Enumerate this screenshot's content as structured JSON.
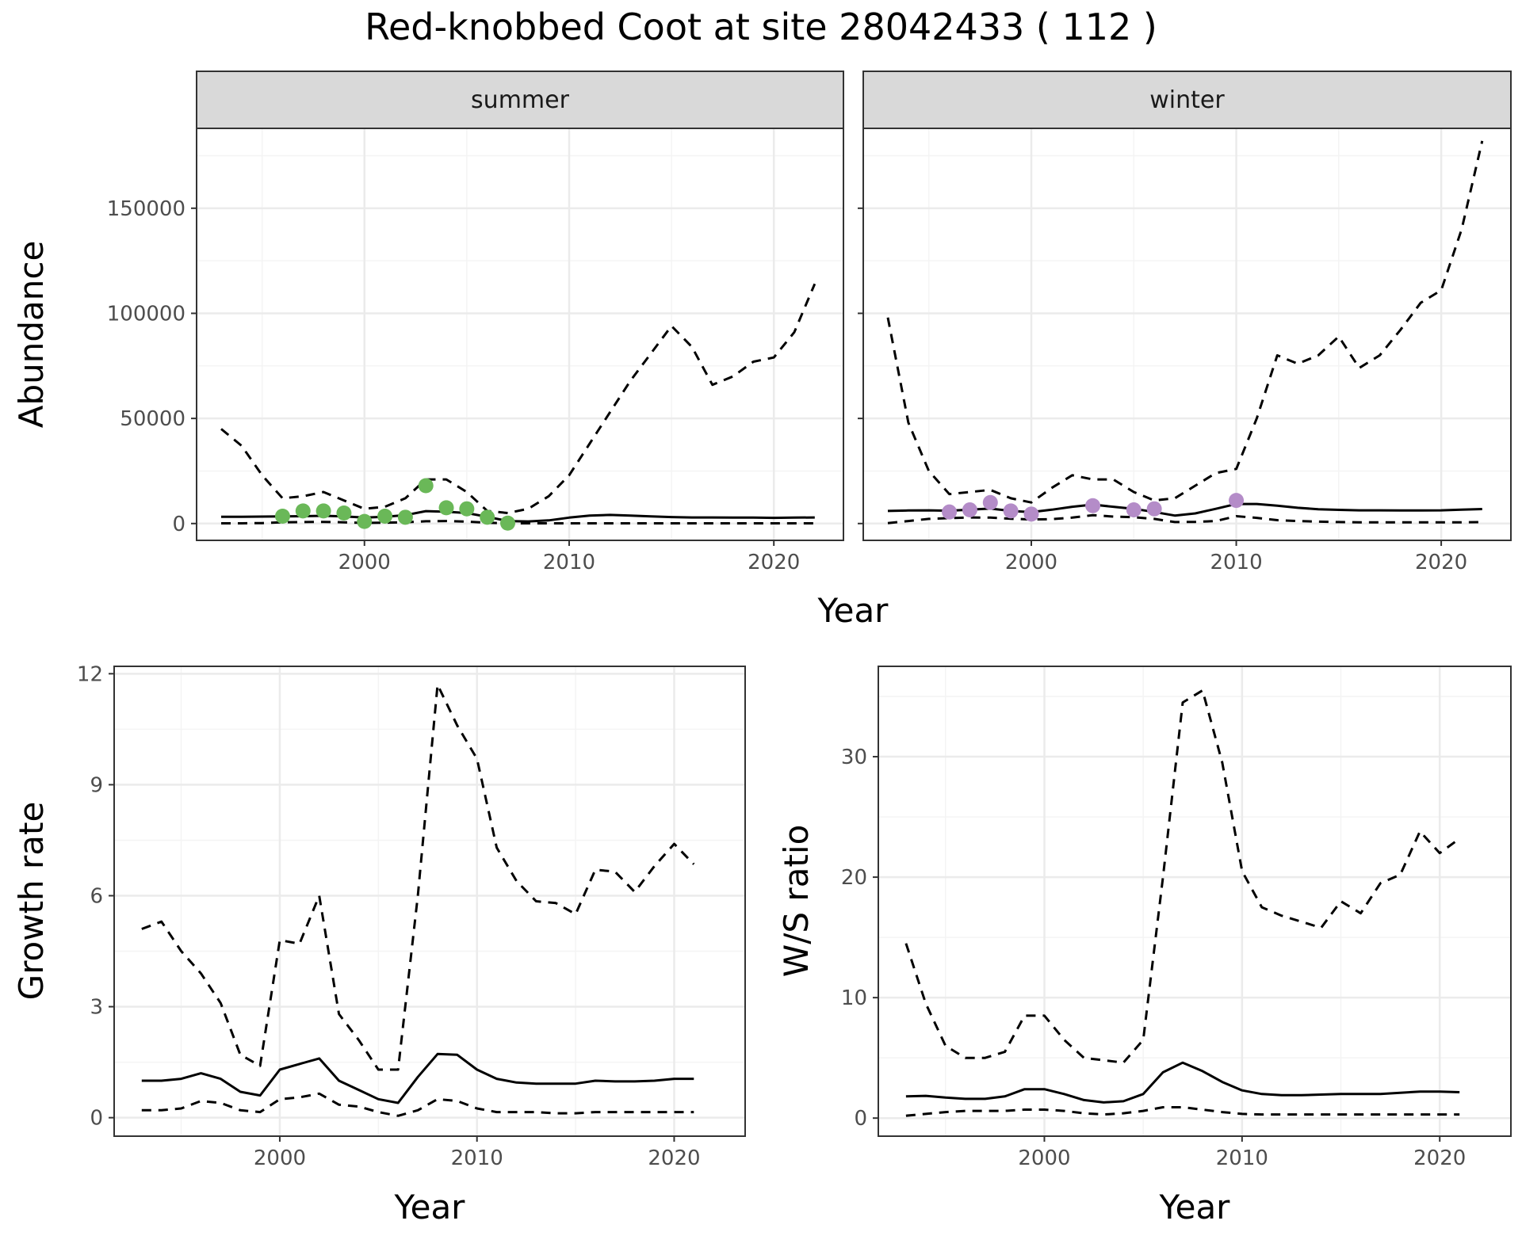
{
  "title": "Red-knobbed Coot at site 28042433 ( 112 )",
  "colors": {
    "summer_points": "#6ab858",
    "winter_points": "#b48cc8",
    "line": "#000000",
    "grid_major": "#ebebeb",
    "grid_minor": "#f4f4f4",
    "strip_bg": "#d9d9d9",
    "panel_border": "#333333"
  },
  "chart_data": [
    {
      "type": "line",
      "panel": "summer",
      "strip_label": "summer",
      "xlabel": "Year",
      "ylabel": "Abundance",
      "xlim": [
        1991.8,
        2023.4
      ],
      "ylim": [
        -8000,
        188000
      ],
      "xticks": [
        2000,
        2010,
        2020
      ],
      "yticks": [
        0,
        50000,
        100000,
        150000
      ],
      "grid": true,
      "series": [
        {
          "role": "estimate",
          "linestyle": "solid",
          "x": [
            1993,
            1994,
            1995,
            1996,
            1997,
            1998,
            1999,
            2000,
            2001,
            2002,
            2003,
            2004,
            2005,
            2006,
            2007,
            2008,
            2009,
            2010,
            2011,
            2012,
            2013,
            2014,
            2015,
            2016,
            2017,
            2018,
            2019,
            2020,
            2021,
            2022
          ],
          "y": [
            3200,
            3200,
            3300,
            3400,
            3500,
            3700,
            3400,
            2800,
            3200,
            4000,
            5900,
            5600,
            5000,
            3200,
            1200,
            1000,
            1500,
            2800,
            3800,
            4100,
            3800,
            3400,
            3100,
            2900,
            2900,
            2800,
            2800,
            2700,
            2800,
            2900
          ]
        },
        {
          "role": "upper",
          "linestyle": "dashed",
          "x": [
            1993,
            1994,
            1995,
            1996,
            1997,
            1998,
            1999,
            2000,
            2001,
            2002,
            2003,
            2004,
            2005,
            2006,
            2007,
            2008,
            2009,
            2010,
            2011,
            2012,
            2013,
            2014,
            2015,
            2016,
            2017,
            2018,
            2019,
            2020,
            2021,
            2022
          ],
          "y": [
            45000,
            37000,
            23000,
            12000,
            13000,
            15000,
            11000,
            7000,
            8000,
            12000,
            21000,
            21000,
            15000,
            6000,
            5000,
            7000,
            13000,
            23000,
            38000,
            53000,
            68000,
            81000,
            94000,
            84000,
            66000,
            70000,
            77000,
            79000,
            91000,
            114000
          ]
        },
        {
          "role": "lower",
          "linestyle": "dashed",
          "x": [
            1993,
            1994,
            1995,
            1996,
            1997,
            1998,
            1999,
            2000,
            2001,
            2002,
            2003,
            2004,
            2005,
            2006,
            2007,
            2008,
            2009,
            2010,
            2011,
            2012,
            2013,
            2014,
            2015,
            2016,
            2017,
            2018,
            2019,
            2020,
            2021,
            2022
          ],
          "y": [
            100,
            100,
            200,
            600,
            700,
            800,
            600,
            300,
            400,
            600,
            1100,
            1200,
            900,
            400,
            100,
            100,
            100,
            100,
            100,
            100,
            100,
            100,
            100,
            100,
            100,
            100,
            100,
            100,
            100,
            100
          ]
        }
      ],
      "points": {
        "x": [
          1996,
          1997,
          1998,
          1999,
          2000,
          2001,
          2002,
          2003,
          2004,
          2005,
          2006,
          2007
        ],
        "y": [
          3500,
          6000,
          6000,
          5000,
          1000,
          3500,
          3000,
          18000,
          7500,
          7000,
          3000,
          200
        ]
      }
    },
    {
      "type": "line",
      "panel": "winter",
      "strip_label": "winter",
      "xlabel": "Year",
      "ylabel": "Abundance",
      "xlim": [
        1991.8,
        2023.4
      ],
      "ylim": [
        -8000,
        188000
      ],
      "xticks": [
        2000,
        2010,
        2020
      ],
      "yticks": [
        0,
        50000,
        100000,
        150000
      ],
      "grid": true,
      "series": [
        {
          "role": "estimate",
          "linestyle": "solid",
          "x": [
            1993,
            1994,
            1995,
            1996,
            1997,
            1998,
            1999,
            2000,
            2001,
            2002,
            2003,
            2004,
            2005,
            2006,
            2007,
            2008,
            2009,
            2010,
            2011,
            2012,
            2013,
            2014,
            2015,
            2016,
            2017,
            2018,
            2019,
            2020,
            2021,
            2022
          ],
          "y": [
            6000,
            6200,
            6300,
            6100,
            6600,
            7100,
            6000,
            5400,
            6600,
            8000,
            9000,
            8000,
            7000,
            5500,
            3800,
            4800,
            7000,
            9300,
            9300,
            8500,
            7500,
            6800,
            6500,
            6300,
            6300,
            6200,
            6200,
            6300,
            6600,
            6900
          ]
        },
        {
          "role": "upper",
          "linestyle": "dashed",
          "x": [
            1993,
            1994,
            1995,
            1996,
            1997,
            1998,
            1999,
            2000,
            2001,
            2002,
            2003,
            2004,
            2005,
            2006,
            2007,
            2008,
            2009,
            2010,
            2011,
            2012,
            2013,
            2014,
            2015,
            2016,
            2017,
            2018,
            2019,
            2020,
            2021,
            2022
          ],
          "y": [
            98000,
            48000,
            25000,
            14000,
            15000,
            16000,
            12000,
            10000,
            17000,
            23000,
            21000,
            21000,
            15000,
            11000,
            12000,
            18000,
            24000,
            26000,
            50000,
            80000,
            76000,
            80000,
            89000,
            74000,
            80000,
            92000,
            105000,
            111000,
            140000,
            182000
          ]
        },
        {
          "role": "lower",
          "linestyle": "dashed",
          "x": [
            1993,
            1994,
            1995,
            1996,
            1997,
            1998,
            1999,
            2000,
            2001,
            2002,
            2003,
            2004,
            2005,
            2006,
            2007,
            2008,
            2009,
            2010,
            2011,
            2012,
            2013,
            2014,
            2015,
            2016,
            2017,
            2018,
            2019,
            2020,
            2021,
            2022
          ],
          "y": [
            200,
            1200,
            2200,
            2600,
            2900,
            2800,
            2300,
            1900,
            2100,
            2800,
            4000,
            3300,
            3000,
            2200,
            700,
            800,
            1200,
            3500,
            2700,
            1600,
            1200,
            900,
            700,
            600,
            600,
            600,
            600,
            600,
            600,
            700
          ]
        }
      ],
      "points": {
        "x": [
          1996,
          1997,
          1998,
          1999,
          2000,
          2003,
          2005,
          2006,
          2010
        ],
        "y": [
          5500,
          6500,
          10000,
          6000,
          4500,
          8500,
          6500,
          7000,
          11000
        ]
      }
    },
    {
      "type": "line",
      "panel": "growth",
      "xlabel": "Year",
      "ylabel": "Growth rate",
      "xlim": [
        1991.6,
        2023.6
      ],
      "ylim": [
        -0.5,
        12.2
      ],
      "xticks": [
        2000,
        2010,
        2020
      ],
      "yticks": [
        0,
        3,
        6,
        9,
        12
      ],
      "grid": true,
      "series": [
        {
          "role": "estimate",
          "linestyle": "solid",
          "x": [
            1993,
            1994,
            1995,
            1996,
            1997,
            1998,
            1999,
            2000,
            2001,
            2002,
            2003,
            2004,
            2005,
            2006,
            2007,
            2008,
            2009,
            2010,
            2011,
            2012,
            2013,
            2014,
            2015,
            2016,
            2017,
            2018,
            2019,
            2020,
            2021
          ],
          "y": [
            1.0,
            1.0,
            1.05,
            1.2,
            1.05,
            0.7,
            0.6,
            1.3,
            1.45,
            1.6,
            1.0,
            0.75,
            0.5,
            0.4,
            1.1,
            1.72,
            1.7,
            1.3,
            1.05,
            0.95,
            0.92,
            0.92,
            0.92,
            1.0,
            0.98,
            0.98,
            1.0,
            1.05,
            1.05
          ]
        },
        {
          "role": "upper",
          "linestyle": "dashed",
          "x": [
            1993,
            1994,
            1995,
            1996,
            1997,
            1998,
            1999,
            2000,
            2001,
            2002,
            2003,
            2004,
            2005,
            2006,
            2007,
            2008,
            2009,
            2010,
            2011,
            2012,
            2013,
            2014,
            2015,
            2016,
            2017,
            2018,
            2019,
            2020,
            2021
          ],
          "y": [
            5.1,
            5.3,
            4.5,
            3.9,
            3.1,
            1.7,
            1.4,
            4.8,
            4.7,
            6.0,
            2.8,
            2.1,
            1.3,
            1.3,
            6.0,
            11.7,
            10.6,
            9.7,
            7.3,
            6.4,
            5.85,
            5.8,
            5.5,
            6.7,
            6.65,
            6.1,
            6.8,
            7.4,
            6.85
          ]
        },
        {
          "role": "lower",
          "linestyle": "dashed",
          "x": [
            1993,
            1994,
            1995,
            1996,
            1997,
            1998,
            1999,
            2000,
            2001,
            2002,
            2003,
            2004,
            2005,
            2006,
            2007,
            2008,
            2009,
            2010,
            2011,
            2012,
            2013,
            2014,
            2015,
            2016,
            2017,
            2018,
            2019,
            2020,
            2021
          ],
          "y": [
            0.2,
            0.2,
            0.25,
            0.45,
            0.4,
            0.2,
            0.15,
            0.5,
            0.55,
            0.65,
            0.35,
            0.3,
            0.15,
            0.05,
            0.2,
            0.5,
            0.45,
            0.25,
            0.15,
            0.15,
            0.15,
            0.12,
            0.12,
            0.15,
            0.15,
            0.15,
            0.15,
            0.15,
            0.15
          ]
        }
      ]
    },
    {
      "type": "line",
      "panel": "ws_ratio",
      "xlabel": "Year",
      "ylabel": "W/S ratio",
      "xlim": [
        1991.6,
        2023.6
      ],
      "ylim": [
        -1.5,
        37.5
      ],
      "xticks": [
        2000,
        2010,
        2020
      ],
      "yticks": [
        0,
        10,
        20,
        30
      ],
      "grid": true,
      "series": [
        {
          "role": "estimate",
          "linestyle": "solid",
          "x": [
            1993,
            1994,
            1995,
            1996,
            1997,
            1998,
            1999,
            2000,
            2001,
            2002,
            2003,
            2004,
            2005,
            2006,
            2007,
            2008,
            2009,
            2010,
            2011,
            2012,
            2013,
            2014,
            2015,
            2016,
            2017,
            2018,
            2019,
            2020,
            2021
          ],
          "y": [
            1.8,
            1.85,
            1.7,
            1.6,
            1.6,
            1.8,
            2.4,
            2.4,
            2.0,
            1.5,
            1.3,
            1.4,
            2.0,
            3.8,
            4.6,
            3.9,
            3.0,
            2.3,
            2.0,
            1.9,
            1.9,
            1.95,
            2.0,
            2.0,
            2.0,
            2.1,
            2.2,
            2.2,
            2.15
          ]
        },
        {
          "role": "upper",
          "linestyle": "dashed",
          "x": [
            1993,
            1994,
            1995,
            1996,
            1997,
            1998,
            1999,
            2000,
            2001,
            2002,
            2003,
            2004,
            2005,
            2006,
            2007,
            2008,
            2009,
            2010,
            2011,
            2012,
            2013,
            2014,
            2015,
            2016,
            2017,
            2018,
            2019,
            2020,
            2021
          ],
          "y": [
            14.5,
            9.5,
            6.0,
            5.0,
            5.0,
            5.5,
            8.5,
            8.5,
            6.5,
            5.0,
            4.8,
            4.6,
            6.5,
            20.0,
            34.5,
            35.5,
            29.5,
            20.5,
            17.5,
            16.8,
            16.3,
            15.8,
            18.0,
            17.0,
            19.5,
            20.2,
            23.8,
            22.0,
            23.2
          ]
        },
        {
          "role": "lower",
          "linestyle": "dashed",
          "x": [
            1993,
            1994,
            1995,
            1996,
            1997,
            1998,
            1999,
            2000,
            2001,
            2002,
            2003,
            2004,
            2005,
            2006,
            2007,
            2008,
            2009,
            2010,
            2011,
            2012,
            2013,
            2014,
            2015,
            2016,
            2017,
            2018,
            2019,
            2020,
            2021
          ],
          "y": [
            0.2,
            0.35,
            0.5,
            0.6,
            0.6,
            0.6,
            0.7,
            0.7,
            0.6,
            0.4,
            0.3,
            0.4,
            0.6,
            0.9,
            0.9,
            0.7,
            0.5,
            0.35,
            0.3,
            0.3,
            0.3,
            0.3,
            0.3,
            0.3,
            0.3,
            0.3,
            0.3,
            0.3,
            0.3
          ]
        }
      ]
    }
  ]
}
